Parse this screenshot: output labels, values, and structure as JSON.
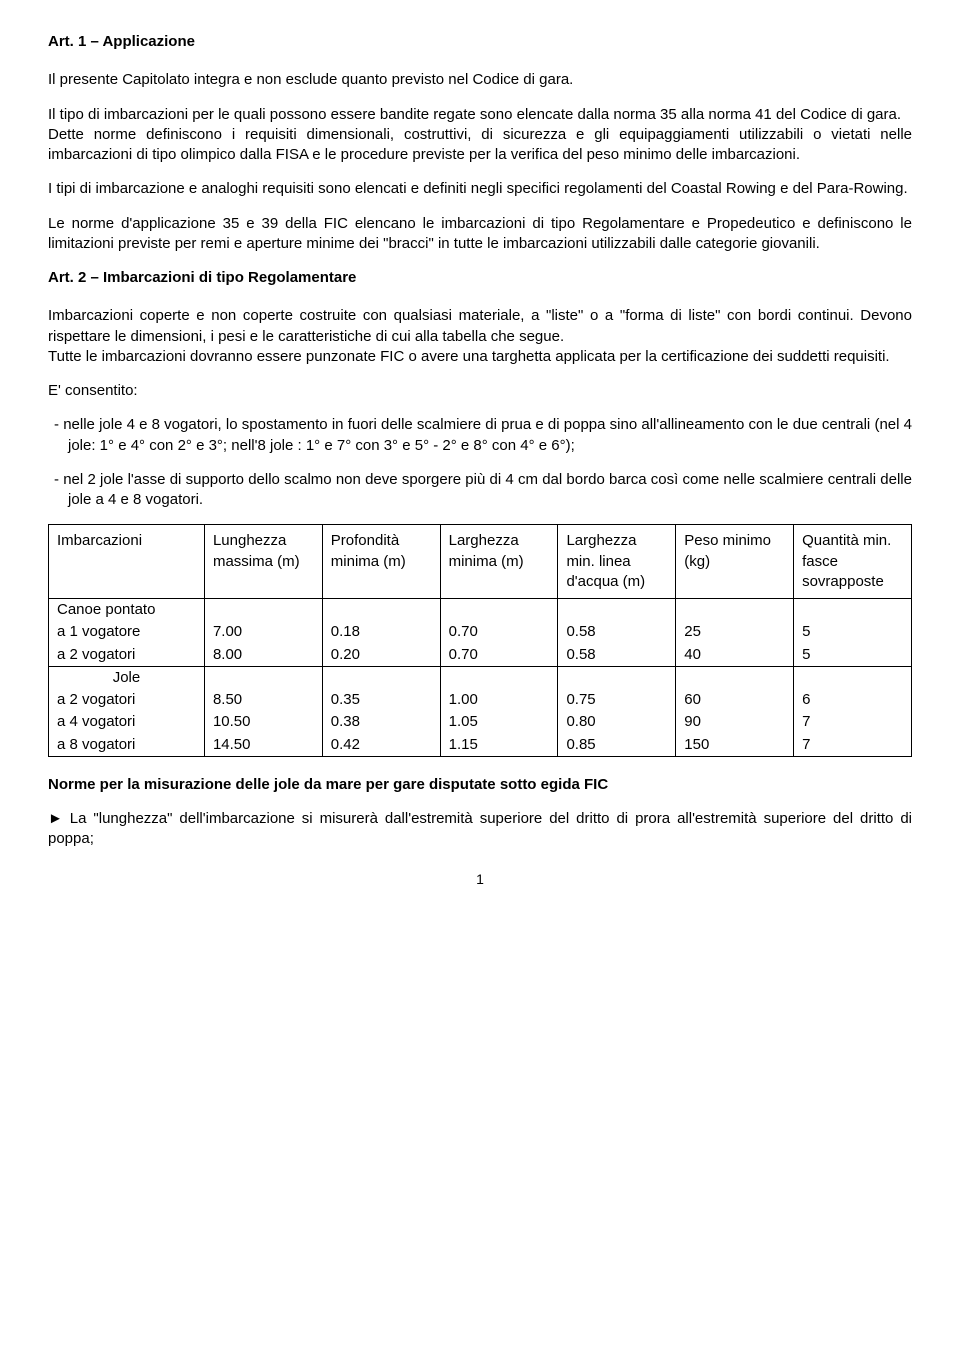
{
  "art1": {
    "title": "Art. 1 – Applicazione",
    "p1": "Il presente Capitolato integra e non esclude quanto previsto nel Codice di gara.",
    "p2": "Il tipo di imbarcazioni per le quali possono essere bandite regate sono elencate dalla norma 35 alla norma 41 del Codice di gara.",
    "p3": "Dette norme definiscono i requisiti dimensionali, costruttivi, di sicurezza e gli equipaggiamenti utilizzabili o vietati nelle imbarcazioni di tipo olimpico dalla FISA e le procedure previste per la verifica del peso minimo delle imbarcazioni.",
    "p4": "I tipi di imbarcazione e analoghi requisiti sono elencati e definiti negli specifici regolamenti del Coastal Rowing e del Para-Rowing.",
    "p5": "Le norme d'applicazione 35 e 39 della FIC elencano le imbarcazioni di tipo Regolamentare e Propedeutico e definiscono le limitazioni previste per remi e aperture minime dei \"bracci\" in tutte le imbarcazioni utilizzabili dalle categorie giovanili."
  },
  "art2": {
    "title": "Art. 2 – Imbarcazioni di tipo Regolamentare",
    "p1": "Imbarcazioni coperte e non coperte costruite con qualsiasi materiale, a \"liste\" o a \"forma di liste\" con bordi continui. Devono rispettare le dimensioni, i pesi e le caratteristiche di cui alla tabella che segue.",
    "p2": "Tutte le imbarcazioni dovranno essere punzonate FIC o avere una targhetta applicata per la certificazione dei suddetti requisiti.",
    "p3": "E' consentito:",
    "li1": "nelle jole 4 e 8 vogatori, lo spostamento in fuori delle scalmiere di prua e di poppa sino all'allineamento con le due centrali (nel 4 jole: 1° e 4° con 2° e 3°; nell'8 jole : 1° e 7° con 3° e 5° - 2° e 8° con 4° e 6°);",
    "li2": "nel 2 jole l'asse di supporto dello scalmo non deve sporgere più di 4 cm dal bordo barca così come nelle scalmiere centrali delle jole a 4 e 8 vogatori."
  },
  "table": {
    "headers": {
      "c1": "Imbarcazioni",
      "c2": "Lunghezza massima (m)",
      "c3": "Profondità minima (m)",
      "c4": "Larghezza minima (m)",
      "c5": "Larghezza min. linea d'acqua (m)",
      "c6": "Peso minimo (kg)",
      "c7": "Quantità min. fasce sovrapposte"
    },
    "group1": {
      "name": "Canoe pontato",
      "r1": {
        "label": "a 1 vogatore",
        "v1": "7.00",
        "v2": "0.18",
        "v3": "0.70",
        "v4": "0.58",
        "v5": "25",
        "v6": "5"
      },
      "r2": {
        "label": "a 2 vogatori",
        "v1": "8.00",
        "v2": "0.20",
        "v3": "0.70",
        "v4": "0.58",
        "v5": "40",
        "v6": "5"
      }
    },
    "group2": {
      "name": "Jole",
      "r1": {
        "label": "a 2 vogatori",
        "v1": "8.50",
        "v2": "0.35",
        "v3": "1.00",
        "v4": "0.75",
        "v5": "60",
        "v6": "6"
      },
      "r2": {
        "label": "a 4 vogatori",
        "v1": "10.50",
        "v2": "0.38",
        "v3": "1.05",
        "v4": "0.80",
        "v5": "90",
        "v6": "7"
      },
      "r3": {
        "label": "a 8 vogatori",
        "v1": "14.50",
        "v2": "0.42",
        "v3": "1.15",
        "v4": "0.85",
        "v5": "150",
        "v6": "7"
      }
    }
  },
  "footer": {
    "heading": "Norme per la misurazione delle jole da mare per gare disputate sotto egida FIC",
    "p1": "► La \"lunghezza\" dell'imbarcazione si misurerà dall'estremità superiore del dritto di prora all'estremità superiore del dritto di poppa;"
  },
  "page_number": "1"
}
